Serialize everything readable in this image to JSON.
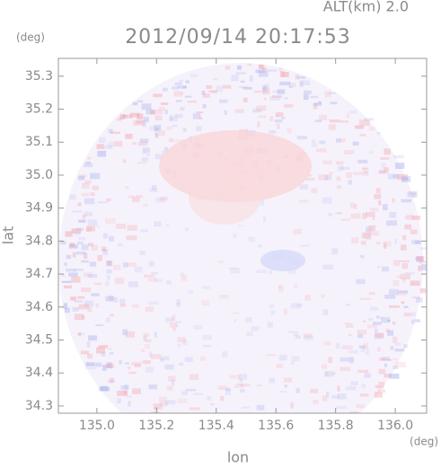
{
  "chart_data": {
    "type": "heatmap",
    "title": "2012/09/14 20:17:53",
    "subtitle": "ALT(km) 2.0",
    "x_label": "lon",
    "y_label": "lat",
    "x_unit": "(deg)",
    "y_unit": "(deg)",
    "xlim": [
      134.871,
      136.105
    ],
    "ylim": [
      34.278,
      35.354
    ],
    "xticks": [
      {
        "value": 135,
        "label": "135.0"
      },
      135.2,
      135.4,
      135.6,
      135.8,
      {
        "value": 136,
        "label": "136.0"
      }
    ],
    "yticks": [
      34.3,
      34.4,
      34.5,
      34.6,
      34.7,
      34.8,
      34.9,
      {
        "value": 35,
        "label": "35.0"
      },
      35.1,
      35.2,
      35.3
    ]
  }
}
